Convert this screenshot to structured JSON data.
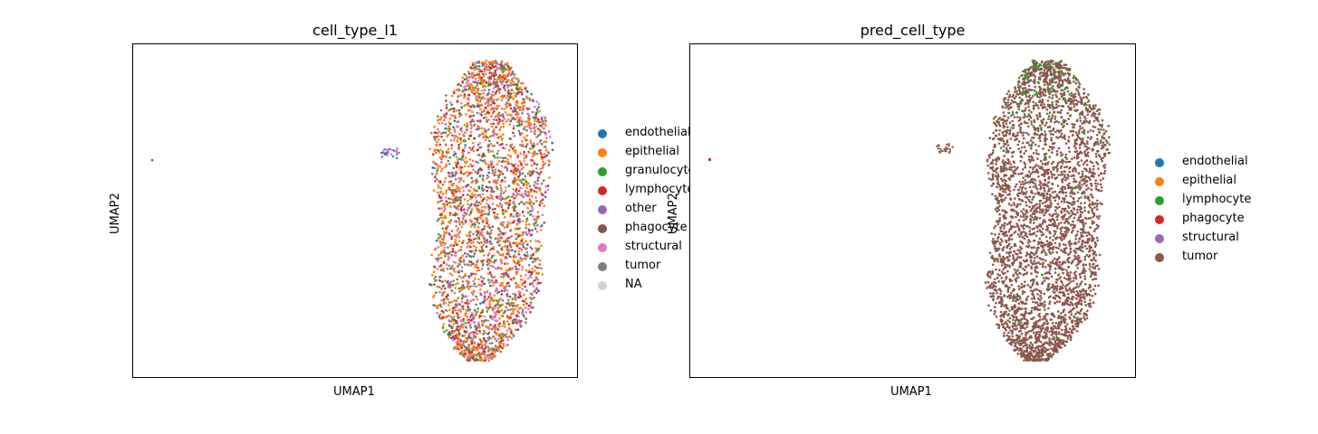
{
  "chart_data": [
    {
      "type": "scatter",
      "title": "cell_type_l1",
      "xlabel": "UMAP1",
      "ylabel": "UMAP2",
      "legend_position": "right",
      "grid": false,
      "categories": [
        {
          "name": "endothelial",
          "color": "#1f77b4"
        },
        {
          "name": "epithelial",
          "color": "#ff7f0e"
        },
        {
          "name": "granulocyte",
          "color": "#2ca02c"
        },
        {
          "name": "lymphocyte",
          "color": "#d62728"
        },
        {
          "name": "other",
          "color": "#9467bd"
        },
        {
          "name": "phagocyte",
          "color": "#8c564b"
        },
        {
          "name": "structural",
          "color": "#e377c2"
        },
        {
          "name": "tumor",
          "color": "#7f7f7f"
        },
        {
          "name": "NA",
          "color": "#d3d3d3"
        }
      ]
    },
    {
      "type": "scatter",
      "title": "pred_cell_type",
      "xlabel": "UMAP1",
      "ylabel": "UMAP2",
      "legend_position": "right",
      "grid": false,
      "categories": [
        {
          "name": "endothelial",
          "color": "#1f77b4"
        },
        {
          "name": "epithelial",
          "color": "#ff7f0e"
        },
        {
          "name": "lymphocyte",
          "color": "#2ca02c"
        },
        {
          "name": "phagocyte",
          "color": "#d62728"
        },
        {
          "name": "structural",
          "color": "#9467bd"
        },
        {
          "name": "tumor",
          "color": "#8c564b"
        }
      ]
    }
  ]
}
